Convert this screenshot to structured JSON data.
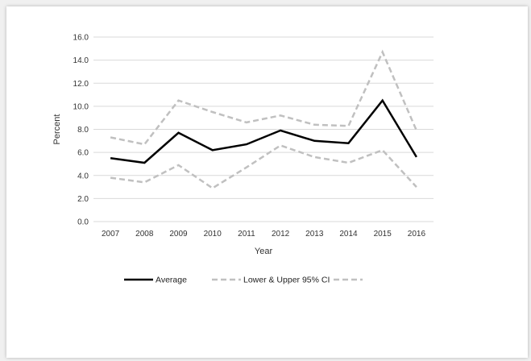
{
  "chart_data": {
    "type": "line",
    "x": [
      "2007",
      "2008",
      "2009",
      "2010",
      "2011",
      "2012",
      "2013",
      "2014",
      "2015",
      "2016"
    ],
    "series": [
      {
        "name": "Average",
        "values": [
          5.5,
          5.1,
          7.7,
          6.2,
          6.7,
          7.9,
          7.0,
          6.8,
          10.5,
          5.6
        ],
        "color": "#000000",
        "dashed": false
      },
      {
        "name": "Lower & Upper 95% CI",
        "values": [
          3.8,
          3.4,
          4.9,
          2.9,
          4.7,
          6.6,
          5.6,
          5.1,
          6.2,
          3.0
        ],
        "color": "#c0c0c0",
        "dashed": true
      },
      {
        "name": "",
        "values": [
          7.3,
          6.7,
          10.5,
          9.5,
          8.6,
          9.2,
          8.4,
          8.3,
          14.7,
          7.9
        ],
        "color": "#c0c0c0",
        "dashed": true
      }
    ],
    "yticks": [
      "0.0",
      "2.0",
      "4.0",
      "6.0",
      "8.0",
      "10.0",
      "12.0",
      "14.0",
      "16.0"
    ],
    "ylim": [
      0,
      16
    ],
    "xlabel": "Year",
    "ylabel": "Percent",
    "grid": true,
    "legend_position": "bottom"
  }
}
